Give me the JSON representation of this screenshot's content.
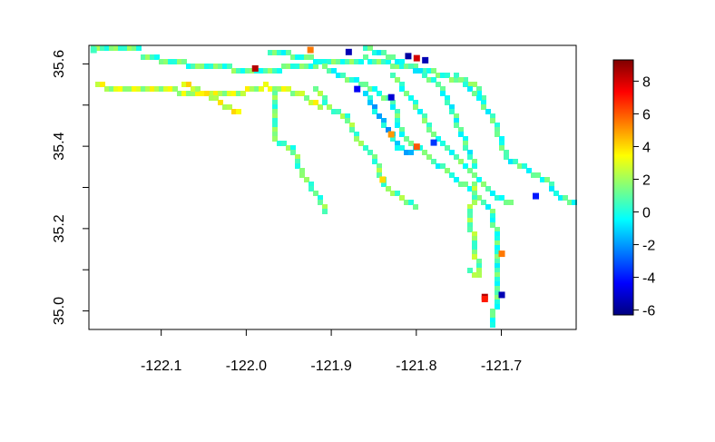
{
  "chart_data": {
    "type": "heatmap",
    "title": "",
    "xlabel": "",
    "ylabel": "",
    "xlim": [
      -122.185,
      -121.612
    ],
    "ylim": [
      34.955,
      35.645
    ],
    "x_ticks": [
      "-122.1",
      "-122.0",
      "-121.9",
      "-121.8",
      "-121.7"
    ],
    "x_tick_values": [
      -122.1,
      -122.0,
      -121.9,
      -121.8,
      -121.7
    ],
    "y_ticks": [
      "35.0",
      "35.2",
      "35.4",
      "35.6"
    ],
    "y_tick_values": [
      35.0,
      35.2,
      35.4,
      35.6
    ],
    "colorbar": {
      "min": -6.3,
      "max": 9.3,
      "ticks": [
        "-6",
        "-4",
        "-2",
        "0",
        "2",
        "4",
        "6",
        "8"
      ],
      "tick_values": [
        -6,
        -4,
        -2,
        0,
        2,
        4,
        6,
        8
      ],
      "colors": [
        "#00007F",
        "#0000FF",
        "#007FFF",
        "#00FFFF",
        "#7FFF7F",
        "#FFFF00",
        "#FF7F00",
        "#FF0000",
        "#7F0000"
      ]
    },
    "grid": false,
    "series": [
      {
        "x": -122.18,
        "y": 35.635,
        "value": 0.5
      },
      {
        "x": -121.99,
        "y": 35.59,
        "value": 8.5
      },
      {
        "x": -121.925,
        "y": 35.635,
        "value": 5.5
      },
      {
        "x": -121.88,
        "y": 35.63,
        "value": -5.5
      },
      {
        "x": -121.81,
        "y": 35.62,
        "value": -5.8
      },
      {
        "x": -121.8,
        "y": 35.615,
        "value": 8.0
      },
      {
        "x": -121.79,
        "y": 35.61,
        "value": -5.5
      },
      {
        "x": -121.83,
        "y": 35.43,
        "value": 5.0
      },
      {
        "x": -121.8,
        "y": 35.4,
        "value": 6.0
      },
      {
        "x": -121.84,
        "y": 35.32,
        "value": 4.0
      },
      {
        "x": -121.7,
        "y": 35.14,
        "value": 5.5
      },
      {
        "x": -121.7,
        "y": 35.04,
        "value": -5.5
      },
      {
        "x": -121.72,
        "y": 35.035,
        "value": 8.5
      },
      {
        "x": -121.72,
        "y": 35.03,
        "value": 7.0
      },
      {
        "x": -121.87,
        "y": 35.54,
        "value": -4.5
      },
      {
        "x": -121.83,
        "y": 35.52,
        "value": -5.0
      },
      {
        "x": -121.78,
        "y": 35.41,
        "value": -3.5
      },
      {
        "x": -121.66,
        "y": 35.28,
        "value": -4.0
      }
    ]
  }
}
